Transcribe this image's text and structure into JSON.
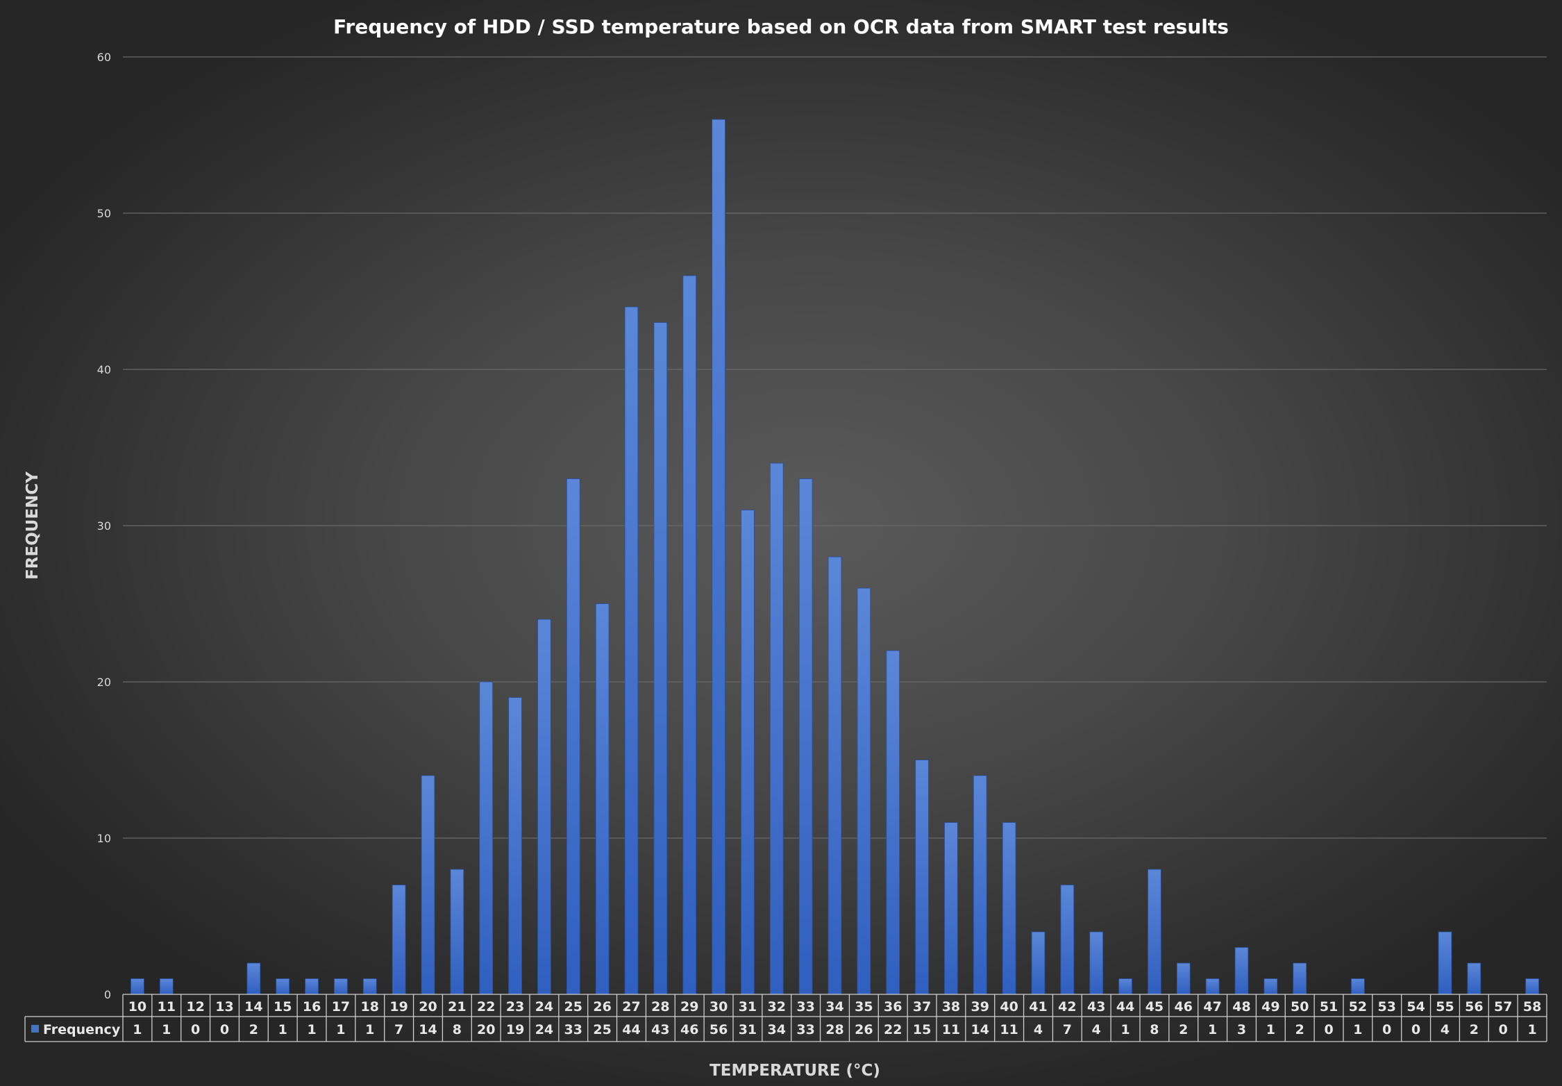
{
  "chart_data": {
    "type": "bar",
    "title": "Frequency of HDD / SSD temperature based on OCR data from SMART test results",
    "xlabel": "TEMPERATURE (°C)",
    "ylabel": "FREQUENCY",
    "ylim": [
      0,
      60
    ],
    "yticks": [
      0,
      10,
      20,
      30,
      40,
      50,
      60
    ],
    "grid": true,
    "data_table": true,
    "categories": [
      "10",
      "11",
      "12",
      "13",
      "14",
      "15",
      "16",
      "17",
      "18",
      "19",
      "20",
      "21",
      "22",
      "23",
      "24",
      "25",
      "26",
      "27",
      "28",
      "29",
      "30",
      "31",
      "32",
      "33",
      "34",
      "35",
      "36",
      "37",
      "38",
      "39",
      "40",
      "41",
      "42",
      "43",
      "44",
      "45",
      "46",
      "47",
      "48",
      "49",
      "50",
      "51",
      "52",
      "53",
      "54",
      "55",
      "56",
      "57",
      "58"
    ],
    "series": [
      {
        "name": "Frequency",
        "color": "#4472c4",
        "values": [
          1,
          1,
          0,
          0,
          2,
          1,
          1,
          1,
          1,
          7,
          14,
          8,
          20,
          19,
          24,
          33,
          25,
          44,
          43,
          46,
          56,
          31,
          34,
          33,
          28,
          26,
          22,
          15,
          11,
          14,
          11,
          4,
          7,
          4,
          1,
          8,
          2,
          1,
          3,
          1,
          2,
          0,
          1,
          0,
          0,
          4,
          2,
          0,
          1
        ]
      }
    ]
  }
}
